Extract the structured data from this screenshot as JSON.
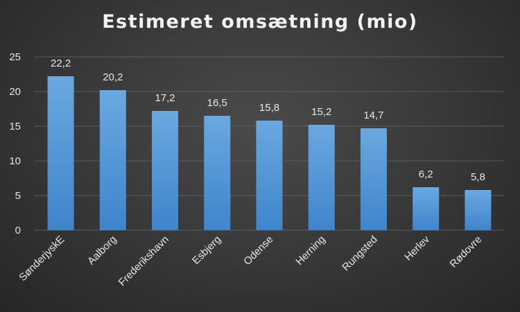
{
  "chart_data": {
    "type": "bar",
    "title": "Estimeret omsætning (mio)",
    "categories": [
      "SønderjyskE",
      "Aalborg",
      "Frederikshavn",
      "Esbjerg",
      "Odense",
      "Herning",
      "Rungsted",
      "Herlev",
      "Rødovre"
    ],
    "values": [
      22.2,
      20.2,
      17.2,
      16.5,
      15.8,
      15.2,
      14.7,
      6.2,
      5.8
    ],
    "data_labels": [
      "22,2",
      "20,2",
      "17,2",
      "16,5",
      "15,8",
      "15,2",
      "14,7",
      "6,2",
      "5,8"
    ],
    "ylim": [
      0,
      25
    ],
    "yticks": [
      "0",
      "5",
      "10",
      "15",
      "20",
      "25"
    ],
    "grid": true,
    "legend": "none",
    "bar_color": "#5b9bd5"
  }
}
